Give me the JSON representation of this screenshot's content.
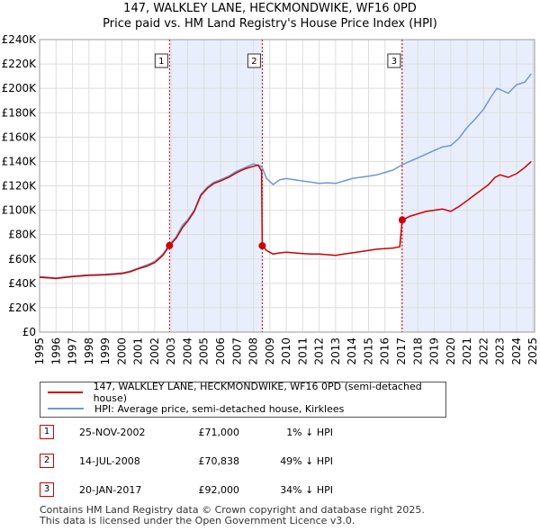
{
  "title_line1": "147, WALKLEY LANE, HECKMONDWIKE, WF16 0PD",
  "title_line2": "Price paid vs. HM Land Registry's House Price Index (HPI)",
  "colors": {
    "property": "#cc0000",
    "hpi": "#6f98d0",
    "shade": "#e8eefb",
    "marker_line": "#cc0000"
  },
  "legend": {
    "property_label": "147, WALKLEY LANE, HECKMONDWIKE, WF16 0PD (semi-detached house)",
    "hpi_label": "HPI: Average price, semi-detached house, Kirklees"
  },
  "sales": [
    {
      "num": "1",
      "date": "25-NOV-2002",
      "price": "£71,000",
      "hpi": "1% ↓ HPI"
    },
    {
      "num": "2",
      "date": "14-JUL-2008",
      "price": "£70,838",
      "hpi": "49% ↓ HPI"
    },
    {
      "num": "3",
      "date": "20-JAN-2017",
      "price": "£92,000",
      "hpi": "34% ↓ HPI"
    }
  ],
  "footer_line1": "Contains HM Land Registry data © Crown copyright and database right 2025.",
  "footer_line2": "This data is licensed under the Open Government Licence v3.0.",
  "chart_data": {
    "type": "line",
    "title": "147, WALKLEY LANE, HECKMONDWIKE, WF16 0PD — Price paid vs. HM Land Registry's House Price Index (HPI)",
    "xlim": [
      1995,
      2025.1
    ],
    "ylim": [
      0,
      240000
    ],
    "x_ticks": [
      1995,
      1996,
      1997,
      1998,
      1999,
      2000,
      2001,
      2002,
      2003,
      2004,
      2005,
      2006,
      2007,
      2008,
      2009,
      2010,
      2011,
      2012,
      2013,
      2014,
      2015,
      2016,
      2017,
      2018,
      2019,
      2020,
      2021,
      2022,
      2023,
      2024,
      2025
    ],
    "x_tick_labels": [
      "1995",
      "1996",
      "1997",
      "1998",
      "1999",
      "2000",
      "2001",
      "2002",
      "2003",
      "2004",
      "2005",
      "2006",
      "2007",
      "2008",
      "2009",
      "2010",
      "2011",
      "2012",
      "2013",
      "2014",
      "2015",
      "2016",
      "2017",
      "2018",
      "2019",
      "2020",
      "2021",
      "2022",
      "2023",
      "2024",
      "2025"
    ],
    "y_ticks": [
      0,
      20000,
      40000,
      60000,
      80000,
      100000,
      120000,
      140000,
      160000,
      180000,
      200000,
      220000,
      240000
    ],
    "y_tick_labels": [
      "£0",
      "£20K",
      "£40K",
      "£60K",
      "£80K",
      "£100K",
      "£120K",
      "£140K",
      "£160K",
      "£180K",
      "£200K",
      "£220K",
      "£240K"
    ],
    "grid": true,
    "shaded_ranges": [
      [
        2002.9,
        2008.54
      ],
      [
        2017.05,
        2025.1
      ]
    ],
    "sale_markers": [
      {
        "label": "1",
        "x": 2002.9,
        "y": 71000
      },
      {
        "label": "2",
        "x": 2008.54,
        "y": 70838
      },
      {
        "label": "3",
        "x": 2017.05,
        "y": 92000
      }
    ],
    "series": [
      {
        "name": "147, WALKLEY LANE, HECKMONDWIKE, WF16 0PD (semi-detached house)",
        "color": "#cc0000",
        "x": [
          1995,
          1996,
          1997,
          1998,
          1999,
          2000,
          2000.5,
          2001,
          2001.5,
          2002,
          2002.5,
          2002.9,
          2003.3,
          2003.7,
          2004,
          2004.4,
          2004.8,
          2005.2,
          2005.6,
          2006,
          2006.5,
          2007,
          2007.5,
          2008,
          2008.3,
          2008.5,
          2008.54,
          2008.8,
          2009.2,
          2009.6,
          2010,
          2010.5,
          2011,
          2011.5,
          2012,
          2012.5,
          2013,
          2013.5,
          2014,
          2014.5,
          2015,
          2015.5,
          2016,
          2016.5,
          2016.9,
          2017.05,
          2017.5,
          2018,
          2018.5,
          2019,
          2019.5,
          2020,
          2020.5,
          2021,
          2021.5,
          2022,
          2022.3,
          2022.7,
          2023,
          2023.5,
          2024,
          2024.5,
          2024.9
        ],
        "y": [
          45000,
          44000,
          45500,
          46500,
          47000,
          48000,
          49500,
          52000,
          54000,
          57000,
          63000,
          71000,
          77000,
          86000,
          91000,
          99000,
          112000,
          118000,
          122000,
          124000,
          127000,
          131000,
          134000,
          136000,
          137000,
          132000,
          70838,
          67000,
          64000,
          65000,
          65500,
          65000,
          64500,
          64000,
          64000,
          63500,
          63000,
          64000,
          65000,
          66000,
          67000,
          68000,
          68500,
          69000,
          70000,
          92000,
          95000,
          97000,
          99000,
          100000,
          101000,
          99000,
          103000,
          108000,
          113000,
          118000,
          121000,
          127000,
          129000,
          127000,
          130000,
          135000,
          140000
        ]
      },
      {
        "name": "HPI: Average price, semi-detached house, Kirklees",
        "color": "#6f98d0",
        "x": [
          1995,
          1996,
          1997,
          1998,
          1999,
          2000,
          2000.5,
          2001,
          2001.5,
          2002,
          2002.5,
          2002.9,
          2003.3,
          2003.7,
          2004,
          2004.4,
          2004.8,
          2005.2,
          2005.6,
          2006,
          2006.5,
          2007,
          2007.5,
          2008,
          2008.5,
          2008.8,
          2009.2,
          2009.6,
          2010,
          2010.5,
          2011,
          2011.5,
          2012,
          2012.5,
          2013,
          2013.5,
          2014,
          2014.5,
          2015,
          2015.5,
          2016,
          2016.5,
          2017,
          2017.5,
          2018,
          2018.5,
          2019,
          2019.5,
          2020,
          2020.5,
          2021,
          2021.5,
          2022,
          2022.4,
          2022.8,
          2023,
          2023.5,
          2024,
          2024.5,
          2024.9
        ],
        "y": [
          45500,
          44500,
          46000,
          47000,
          47500,
          48500,
          50000,
          52500,
          55000,
          58000,
          64000,
          72000,
          78000,
          88000,
          92000,
          100000,
          113000,
          119000,
          123000,
          125000,
          128000,
          132000,
          135000,
          138000,
          136000,
          126000,
          121000,
          125000,
          126000,
          125000,
          124000,
          123000,
          122000,
          122500,
          122000,
          124000,
          126000,
          127000,
          128000,
          129000,
          131000,
          133000,
          137000,
          140000,
          143000,
          146000,
          149000,
          152000,
          153000,
          159000,
          168000,
          175000,
          183000,
          192000,
          200000,
          199000,
          196000,
          203000,
          205000,
          212000
        ]
      }
    ]
  }
}
